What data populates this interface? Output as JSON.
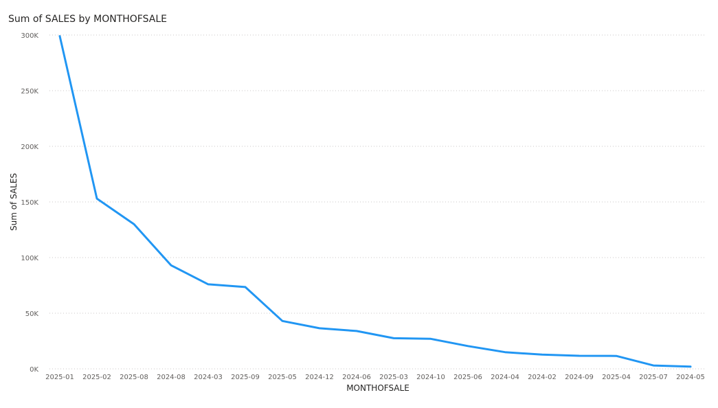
{
  "chart_data": {
    "type": "line",
    "title": "Sum of SALES by MONTHOFSALE",
    "xlabel": "MONTHOFSALE",
    "ylabel": "Sum of SALES",
    "ylim": [
      0,
      300000
    ],
    "yticks": [
      0,
      50000,
      100000,
      150000,
      200000,
      250000,
      300000
    ],
    "ytick_labels": [
      "0K",
      "50K",
      "100K",
      "150K",
      "200K",
      "250K",
      "300K"
    ],
    "grid": true,
    "legend": "none",
    "categories": [
      "2025-01",
      "2025-02",
      "2025-08",
      "2024-08",
      "2024-03",
      "2025-09",
      "2025-05",
      "2024-12",
      "2024-06",
      "2025-03",
      "2024-10",
      "2025-06",
      "2024-04",
      "2024-02",
      "2024-09",
      "2025-04",
      "2025-07",
      "2024-05"
    ],
    "series": [
      {
        "values": [
          299000,
          153000,
          130000,
          93000,
          76000,
          73500,
          43000,
          36500,
          34000,
          27500,
          27000,
          20500,
          15000,
          12800,
          11700,
          11600,
          3000,
          2000
        ],
        "color": "#2196f3"
      }
    ]
  }
}
